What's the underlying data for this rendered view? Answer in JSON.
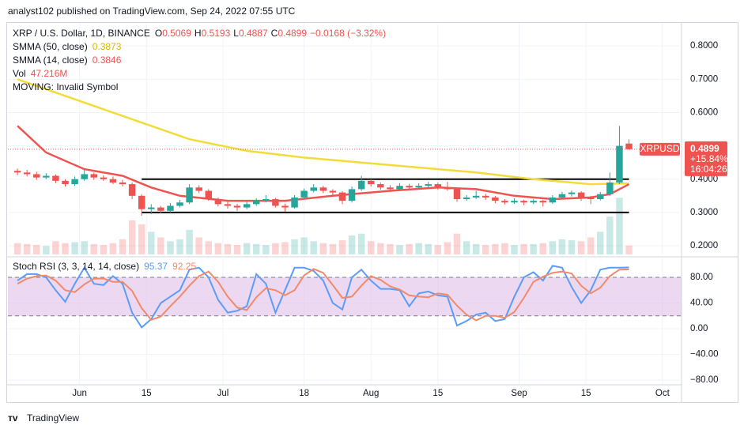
{
  "header": "analyst102 published on TradingView.com, Sep 24, 2022 07:55 UTC",
  "footer": "TradingView",
  "chart_data": {
    "type": "candlestick",
    "title": "XRP / U.S. Dollar, 1D, BINANCE",
    "ohlc_labels": [
      "O",
      "H",
      "L",
      "C"
    ],
    "change": "−0.0168 (−3.32%)",
    "x": [
      "May 19",
      "May 21",
      "May 23",
      "May 25",
      "May 27",
      "May 29",
      "May 31",
      "Jun 2",
      "Jun 4",
      "Jun 6",
      "Jun 8",
      "Jun 10",
      "Jun 12",
      "Jun 14",
      "Jun 16",
      "Jun 18",
      "Jun 20",
      "Jun 22",
      "Jun 24",
      "Jun 26",
      "Jun 28",
      "Jun 30",
      "Jul 2",
      "Jul 4",
      "Jul 6",
      "Jul 8",
      "Jul 10",
      "Jul 12",
      "Jul 14",
      "Jul 16",
      "Jul 18",
      "Jul 20",
      "Jul 22",
      "Jul 24",
      "Jul 26",
      "Jul 28",
      "Jul 30",
      "Aug 1",
      "Aug 3",
      "Aug 5",
      "Aug 7",
      "Aug 9",
      "Aug 11",
      "Aug 13",
      "Aug 15",
      "Aug 17",
      "Aug 19",
      "Aug 21",
      "Aug 23",
      "Aug 25",
      "Aug 27",
      "Aug 29",
      "Aug 31",
      "Sep 2",
      "Sep 4",
      "Sep 6",
      "Sep 8",
      "Sep 10",
      "Sep 12",
      "Sep 14",
      "Sep 16",
      "Sep 18",
      "Sep 20",
      "Sep 22",
      "Sep 24"
    ],
    "open": [
      0.425,
      0.42,
      0.415,
      0.405,
      0.41,
      0.395,
      0.385,
      0.4,
      0.415,
      0.405,
      0.4,
      0.39,
      0.385,
      0.35,
      0.31,
      0.315,
      0.305,
      0.32,
      0.33,
      0.375,
      0.365,
      0.34,
      0.325,
      0.32,
      0.315,
      0.325,
      0.335,
      0.34,
      0.32,
      0.315,
      0.345,
      0.365,
      0.375,
      0.365,
      0.36,
      0.335,
      0.37,
      0.395,
      0.385,
      0.375,
      0.37,
      0.38,
      0.375,
      0.38,
      0.385,
      0.375,
      0.37,
      0.34,
      0.345,
      0.35,
      0.345,
      0.335,
      0.33,
      0.335,
      0.33,
      0.335,
      0.33,
      0.345,
      0.355,
      0.36,
      0.345,
      0.34,
      0.355,
      0.39,
      0.5069
    ],
    "high": [
      0.432,
      0.428,
      0.422,
      0.418,
      0.414,
      0.4,
      0.408,
      0.428,
      0.42,
      0.412,
      0.408,
      0.398,
      0.39,
      0.355,
      0.325,
      0.32,
      0.328,
      0.338,
      0.385,
      0.382,
      0.37,
      0.345,
      0.332,
      0.326,
      0.332,
      0.342,
      0.352,
      0.344,
      0.326,
      0.352,
      0.372,
      0.385,
      0.38,
      0.37,
      0.364,
      0.378,
      0.41,
      0.4,
      0.39,
      0.382,
      0.388,
      0.386,
      0.388,
      0.392,
      0.39,
      0.392,
      0.374,
      0.352,
      0.365,
      0.356,
      0.35,
      0.34,
      0.342,
      0.338,
      0.34,
      0.338,
      0.352,
      0.362,
      0.366,
      0.364,
      0.35,
      0.362,
      0.42,
      0.56,
      0.5193
    ],
    "low": [
      0.412,
      0.408,
      0.398,
      0.4,
      0.388,
      0.378,
      0.38,
      0.395,
      0.398,
      0.395,
      0.385,
      0.378,
      0.34,
      0.29,
      0.295,
      0.298,
      0.3,
      0.315,
      0.325,
      0.358,
      0.335,
      0.318,
      0.312,
      0.305,
      0.31,
      0.32,
      0.33,
      0.315,
      0.302,
      0.312,
      0.34,
      0.36,
      0.358,
      0.352,
      0.325,
      0.33,
      0.365,
      0.378,
      0.368,
      0.362,
      0.365,
      0.368,
      0.37,
      0.374,
      0.368,
      0.365,
      0.332,
      0.335,
      0.34,
      0.338,
      0.328,
      0.324,
      0.326,
      0.322,
      0.325,
      0.318,
      0.326,
      0.34,
      0.348,
      0.335,
      0.325,
      0.336,
      0.35,
      0.385,
      0.4887
    ],
    "close": [
      0.42,
      0.415,
      0.405,
      0.41,
      0.395,
      0.385,
      0.4,
      0.415,
      0.405,
      0.4,
      0.39,
      0.385,
      0.35,
      0.31,
      0.315,
      0.305,
      0.32,
      0.33,
      0.375,
      0.365,
      0.34,
      0.325,
      0.32,
      0.315,
      0.325,
      0.335,
      0.34,
      0.32,
      0.315,
      0.345,
      0.365,
      0.375,
      0.365,
      0.36,
      0.335,
      0.37,
      0.395,
      0.385,
      0.375,
      0.37,
      0.38,
      0.375,
      0.38,
      0.385,
      0.375,
      0.37,
      0.34,
      0.345,
      0.35,
      0.345,
      0.335,
      0.33,
      0.335,
      0.33,
      0.335,
      0.33,
      0.345,
      0.355,
      0.36,
      0.345,
      0.34,
      0.355,
      0.39,
      0.5,
      0.4899
    ],
    "up_color": "#26a69a",
    "down_color": "#ef5350",
    "xlim": [
      "May 17",
      "Oct 5"
    ],
    "xticks": [
      {
        "value": "Jun 1",
        "label": "Jun"
      },
      {
        "value": "Jun 15",
        "label": "15"
      },
      {
        "value": "Jul 1",
        "label": "Jul"
      },
      {
        "value": "Jul 18",
        "label": "18"
      },
      {
        "value": "Aug 1",
        "label": "Aug"
      },
      {
        "value": "Aug 15",
        "label": "15"
      },
      {
        "value": "Sep 1",
        "label": "Sep"
      },
      {
        "value": "Sep 15",
        "label": "15"
      },
      {
        "value": "Oct 1",
        "label": "Oct"
      }
    ],
    "ylim": [
      0.174,
      0.855
    ],
    "yticks": [
      {
        "value": 0.2,
        "label": "0.2000"
      },
      {
        "value": 0.3,
        "label": "0.3000"
      },
      {
        "value": 0.4,
        "label": "0.4000"
      },
      {
        "value": 0.5,
        "label": "0.5000"
      },
      {
        "value": 0.6,
        "label": "0.6000"
      },
      {
        "value": 0.7,
        "label": "0.7000"
      },
      {
        "value": 0.8,
        "label": "0.8000"
      }
    ],
    "grid": true,
    "levels": [
      0.4,
      0.3
    ],
    "level_span": [
      "Jun 14",
      "Sep 24"
    ],
    "series": [
      {
        "name": "SMMA (50, close)",
        "color": "#f2dc3a",
        "x": [
          "May 19",
          "May 31",
          "Jun 12",
          "Jun 24",
          "Jul 6",
          "Jul 18",
          "Jul 30",
          "Aug 11",
          "Aug 23",
          "Sep 4",
          "Sep 16",
          "Sep 24"
        ],
        "values": [
          0.7,
          0.64,
          0.58,
          0.52,
          0.485,
          0.465,
          0.45,
          0.435,
          0.42,
          0.4,
          0.385,
          0.3873
        ]
      },
      {
        "name": "SMMA (14, close)",
        "color": "#ef5350",
        "x": [
          "May 19",
          "May 25",
          "Jun 2",
          "Jun 10",
          "Jun 16",
          "Jun 22",
          "Jul 2",
          "Jul 14",
          "Jul 24",
          "Aug 5",
          "Aug 15",
          "Aug 23",
          "Aug 31",
          "Sep 8",
          "Sep 16",
          "Sep 20",
          "Sep 24"
        ],
        "values": [
          0.56,
          0.48,
          0.43,
          0.41,
          0.375,
          0.35,
          0.335,
          0.335,
          0.35,
          0.365,
          0.375,
          0.37,
          0.35,
          0.34,
          0.345,
          0.355,
          0.3846
        ]
      }
    ],
    "volume": {
      "name": "Vol",
      "label": "47.216M",
      "lim": [
        0,
        1200
      ],
      "values": [
        60,
        55,
        50,
        45,
        70,
        60,
        65,
        70,
        55,
        50,
        60,
        80,
        180,
        160,
        120,
        90,
        70,
        80,
        130,
        90,
        70,
        60,
        55,
        50,
        60,
        55,
        50,
        60,
        65,
        80,
        90,
        70,
        60,
        55,
        75,
        100,
        110,
        70,
        60,
        55,
        50,
        55,
        60,
        55,
        50,
        65,
        110,
        70,
        55,
        50,
        55,
        60,
        50,
        55,
        55,
        60,
        70,
        80,
        75,
        70,
        90,
        120,
        200,
        300,
        47.216
      ]
    },
    "annotation": "MOVING: Invalid Symbol",
    "symbol_tag": "XRPUSD",
    "price_change": "+15.84%",
    "countdown": "16:04:26",
    "indicator": {
      "name": "Stoch RSI (3, 3, 14, 14, close)",
      "ylim": [
        -86,
        109.5
      ],
      "yticks": [
        {
          "value": 80,
          "label": "80.00"
        },
        {
          "value": 40,
          "label": "40.00"
        },
        {
          "value": 0,
          "label": "0.00"
        },
        {
          "value": -40,
          "label": "−40.00"
        },
        {
          "value": -80,
          "label": "−80.00"
        }
      ],
      "bands": [
        20,
        80
      ],
      "band_color": "#e1bee7",
      "series": [
        {
          "name": "K",
          "color": "#5b9cf6",
          "values": [
            75,
            85,
            85,
            80,
            60,
            42,
            70,
            95,
            70,
            68,
            82,
            70,
            25,
            2,
            15,
            40,
            50,
            60,
            92,
            95,
            80,
            45,
            25,
            28,
            35,
            85,
            70,
            25,
            60,
            95,
            95,
            90,
            75,
            40,
            30,
            80,
            92,
            75,
            62,
            62,
            60,
            35,
            55,
            58,
            52,
            50,
            5,
            12,
            22,
            25,
            12,
            15,
            50,
            80,
            88,
            75,
            98,
            95,
            65,
            40,
            60,
            92,
            95,
            95,
            95.37
          ]
        },
        {
          "name": "D",
          "color": "#f08a6a",
          "values": [
            70,
            78,
            82,
            83,
            75,
            60,
            57,
            69,
            78,
            78,
            73,
            73,
            59,
            32,
            14,
            19,
            35,
            50,
            67,
            82,
            89,
            73,
            50,
            33,
            29,
            49,
            63,
            60,
            52,
            60,
            83,
            93,
            87,
            68,
            48,
            50,
            67,
            82,
            76,
            66,
            61,
            52,
            50,
            49,
            55,
            53,
            36,
            22,
            13,
            20,
            20,
            17,
            26,
            48,
            73,
            81,
            87,
            89,
            86,
            67,
            55,
            64,
            82,
            92,
            92.25
          ]
        }
      ]
    }
  }
}
